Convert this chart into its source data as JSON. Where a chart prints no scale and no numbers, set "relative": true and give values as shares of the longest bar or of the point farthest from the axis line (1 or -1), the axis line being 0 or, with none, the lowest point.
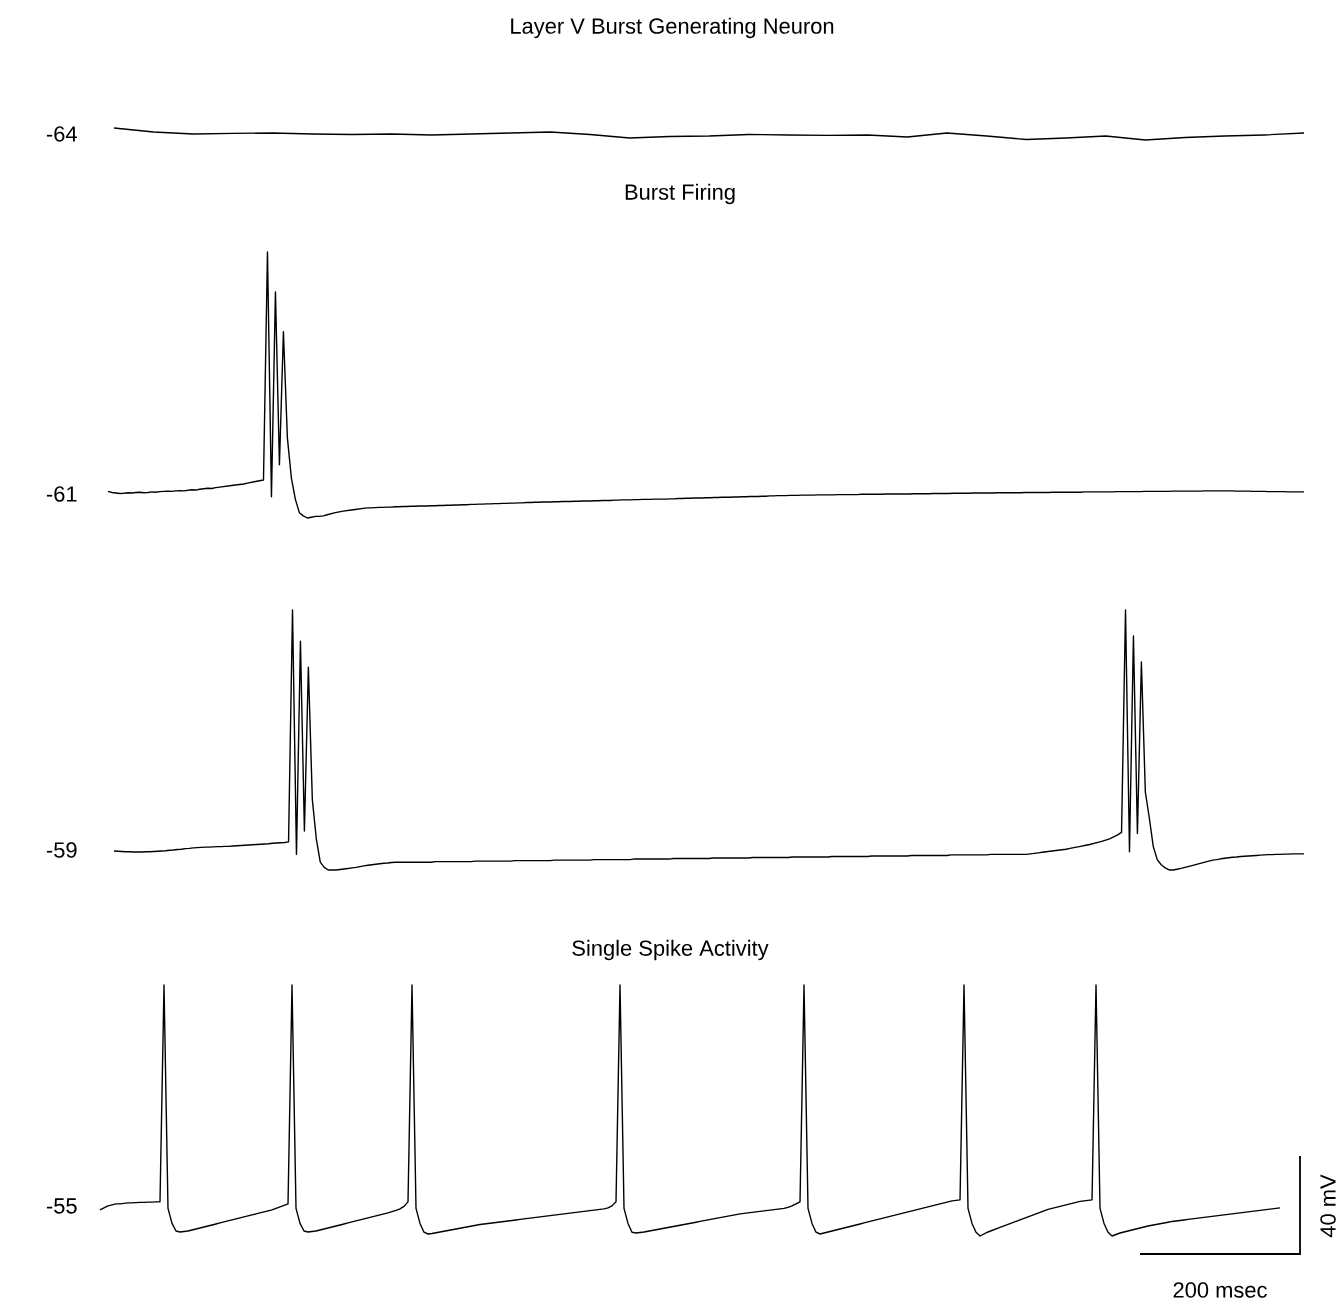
{
  "chart_data": [
    {
      "type": "line",
      "title": "Layer V Burst Generating Neuron",
      "relative": true,
      "color": "#000000",
      "annotations": [
        "-64"
      ],
      "categories": [
        null,
        null,
        null,
        null,
        null,
        null,
        null,
        null,
        null,
        null,
        null,
        null,
        null,
        null,
        null,
        null,
        null,
        null,
        null,
        null,
        null,
        null,
        null,
        null,
        null,
        null,
        null,
        null,
        null,
        null,
        null
      ],
      "values": [
        1,
        0.67,
        0.5,
        0.55,
        0.58,
        0.5,
        0.46,
        0.5,
        0.42,
        0.5,
        0.58,
        0.67,
        0.46,
        0.17,
        0.29,
        0.33,
        0.46,
        0.42,
        0.38,
        0.42,
        0.25,
        0.58,
        0.33,
        0.04,
        0.17,
        0.33,
        0,
        0.21,
        0.33,
        0.42,
        0.58
      ]
    },
    {
      "type": "line",
      "title": "Burst Firing",
      "relative": true,
      "color": "#000000",
      "annotations": [
        "-61"
      ],
      "categories": [
        null,
        null,
        null,
        null,
        null,
        null,
        null,
        null,
        null,
        null,
        null,
        null,
        null,
        null,
        null,
        null,
        null,
        null,
        null,
        null,
        null,
        null,
        null,
        null,
        null,
        null,
        null,
        null,
        null,
        null,
        null,
        null,
        null,
        null,
        null,
        null,
        null,
        null,
        null,
        null,
        null,
        null,
        null,
        null,
        null,
        null,
        null,
        null,
        null,
        null,
        null,
        null,
        null,
        null,
        null,
        null,
        null,
        null,
        null,
        null,
        null,
        null,
        null,
        null,
        null,
        null,
        null,
        null,
        null,
        null,
        null,
        null,
        null,
        null,
        null,
        null,
        null,
        null,
        null,
        null,
        null,
        null,
        null,
        null,
        null,
        null,
        null,
        null,
        null,
        null,
        null,
        null,
        null,
        null,
        null,
        null,
        null,
        null,
        null,
        null,
        null,
        null,
        null,
        null,
        null,
        null,
        null,
        null,
        null,
        null,
        null,
        null,
        null,
        null,
        null,
        null,
        null,
        null,
        null,
        null,
        null,
        null,
        null,
        null,
        null,
        null,
        null,
        null,
        null,
        null,
        null,
        null,
        null,
        null,
        null,
        null,
        null,
        null,
        null,
        null,
        null,
        null,
        null,
        null,
        null,
        null,
        null,
        null,
        null,
        null,
        null,
        null,
        null,
        null,
        null,
        null,
        null,
        null,
        null,
        null,
        null,
        null,
        null,
        null,
        null,
        null,
        null,
        null,
        null,
        null,
        null,
        null,
        null,
        null,
        null,
        null,
        null,
        null,
        null,
        null,
        null,
        null,
        null,
        null,
        null,
        null,
        null,
        null,
        null,
        null,
        null,
        null,
        null,
        null,
        null,
        null,
        null,
        null,
        null,
        null,
        null,
        null,
        null,
        null,
        null,
        null,
        null,
        null,
        null,
        null,
        null,
        null,
        null,
        null,
        null,
        null,
        null,
        null,
        null,
        null,
        null,
        null,
        null,
        null,
        null,
        null,
        null,
        null,
        null,
        null,
        null,
        null,
        null,
        null,
        null,
        null,
        null,
        null,
        null,
        null,
        null,
        null,
        null,
        null,
        null,
        null,
        null,
        null,
        null,
        null,
        null,
        null,
        null,
        null,
        null,
        null,
        null,
        null,
        null,
        null,
        null,
        null,
        null,
        null,
        null,
        null,
        null,
        null,
        null,
        null,
        null,
        null,
        null,
        null,
        null,
        null,
        null,
        null,
        null,
        null,
        null,
        null,
        null,
        null,
        null,
        null,
        null,
        null,
        null,
        null,
        null,
        null,
        null,
        null,
        null,
        null,
        null,
        null,
        null,
        null,
        null
      ],
      "values": [
        0.1,
        0.096,
        0.094,
        0.092,
        0.093,
        0.095,
        0.094,
        0.096,
        0.097,
        0.095,
        0.096,
        0.098,
        0.097,
        0.099,
        0.1,
        0.101,
        0.1,
        0.102,
        0.103,
        0.102,
        0.104,
        0.106,
        0.105,
        0.108,
        0.11,
        0.112,
        0.111,
        0.114,
        0.116,
        0.118,
        0.12,
        0.122,
        0.124,
        0.126,
        0.128,
        0.131,
        0.134,
        0.137,
        0.14,
        0.143,
        1,
        0.08,
        0.85,
        0.2,
        0.7,
        0.3,
        0.15,
        0.07,
        0.02,
        0.008,
        0,
        0.003,
        0.006,
        0.006,
        0.008,
        0.012,
        0.016,
        0.02,
        0.023,
        0.026,
        0.028,
        0.03,
        0.032,
        0.034,
        0.036,
        0.038,
        0.038,
        0.039,
        0.04,
        0.04,
        0.041,
        0.041,
        0.042,
        0.042,
        0.043,
        0.043,
        0.044,
        0.044,
        0.045,
        0.045,
        0.045,
        0.046,
        0.046,
        0.047,
        0.047,
        0.048,
        0.048,
        0.049,
        0.049,
        0.05,
        0.05,
        0.051,
        0.051,
        0.052,
        0.052,
        0.053,
        0.053,
        0.054,
        0.054,
        0.055,
        0.055,
        0.056,
        0.056,
        0.057,
        0.057,
        0.058,
        0.058,
        0.059,
        0.059,
        0.06,
        0.06,
        0.06,
        0.061,
        0.061,
        0.062,
        0.062,
        0.062,
        0.063,
        0.063,
        0.064,
        0.064,
        0.064,
        0.065,
        0.065,
        0.066,
        0.066,
        0.066,
        0.067,
        0.067,
        0.068,
        0.068,
        0.068,
        0.069,
        0.069,
        0.07,
        0.07,
        0.07,
        0.071,
        0.071,
        0.071,
        0.071,
        0.072,
        0.072,
        0.073,
        0.073,
        0.074,
        0.074,
        0.075,
        0.075,
        0.075,
        0.076,
        0.076,
        0.077,
        0.077,
        0.078,
        0.078,
        0.078,
        0.079,
        0.079,
        0.08,
        0.08,
        0.081,
        0.081,
        0.081,
        0.082,
        0.082,
        0.083,
        0.083,
        0.084,
        0.084,
        0.084,
        0.085,
        0.085,
        0.085,
        0.086,
        0.086,
        0.086,
        0.086,
        0.087,
        0.087,
        0.087,
        0.087,
        0.087,
        0.088,
        0.088,
        0.088,
        0.088,
        0.088,
        0.088,
        0.089,
        0.089,
        0.089,
        0.089,
        0.089,
        0.089,
        0.09,
        0.09,
        0.09,
        0.09,
        0.09,
        0.09,
        0.09,
        0.091,
        0.091,
        0.091,
        0.091,
        0.091,
        0.092,
        0.092,
        0.092,
        0.092,
        0.092,
        0.093,
        0.093,
        0.093,
        0.093,
        0.093,
        0.094,
        0.094,
        0.094,
        0.094,
        0.094,
        0.094,
        0.095,
        0.095,
        0.095,
        0.095,
        0.095,
        0.095,
        0.095,
        0.096,
        0.096,
        0.096,
        0.096,
        0.096,
        0.096,
        0.096,
        0.097,
        0.097,
        0.097,
        0.097,
        0.097,
        0.097,
        0.097,
        0.097,
        0.098,
        0.098,
        0.098,
        0.098,
        0.098,
        0.098,
        0.098,
        0.098,
        0.099,
        0.099,
        0.099,
        0.099,
        0.099,
        0.099,
        0.099,
        0.1,
        0.1,
        0.1,
        0.1,
        0.1,
        0.1,
        0.1,
        0.101,
        0.101,
        0.101,
        0.101,
        0.101,
        0.101,
        0.101,
        0.101,
        0.102,
        0.102,
        0.102,
        0.102,
        0.102,
        0.102,
        0.102,
        0.102,
        0.101,
        0.101,
        0.101,
        0.101,
        0.1,
        0.1,
        0.1,
        0.1,
        0.099,
        0.099,
        0.099,
        0.099,
        0.099,
        0.098,
        0.098,
        0.098,
        0.098,
        0.098
      ]
    },
    {
      "type": "line",
      "relative": true,
      "color": "#000000",
      "annotations": [
        "-59"
      ],
      "categories": [
        null,
        null,
        null,
        null,
        null,
        null,
        null,
        null,
        null,
        null,
        null,
        null,
        null,
        null,
        null,
        null,
        null,
        null,
        null,
        null,
        null,
        null,
        null,
        null,
        null,
        null,
        null,
        null,
        null,
        null,
        null,
        null,
        null,
        null,
        null,
        null,
        null,
        null,
        null,
        null,
        null,
        null,
        null,
        null,
        null,
        null,
        null,
        null,
        null,
        null,
        null,
        null,
        null,
        null,
        null,
        null,
        null,
        null,
        null,
        null,
        null,
        null,
        null,
        null,
        null,
        null,
        null,
        null,
        null,
        null,
        null,
        null,
        null,
        null,
        null,
        null,
        null,
        null,
        null,
        null,
        null,
        null,
        null,
        null,
        null,
        null,
        null,
        null,
        null,
        null,
        null,
        null,
        null,
        null,
        null,
        null,
        null,
        null,
        null,
        null,
        null,
        null,
        null,
        null,
        null,
        null,
        null,
        null,
        null,
        null,
        null,
        null,
        null,
        null,
        null,
        null,
        null,
        null,
        null,
        null,
        null,
        null,
        null,
        null,
        null,
        null,
        null,
        null,
        null,
        null,
        null,
        null,
        null,
        null,
        null,
        null,
        null,
        null,
        null,
        null,
        null,
        null,
        null,
        null,
        null,
        null,
        null,
        null,
        null,
        null,
        null,
        null,
        null,
        null,
        null,
        null,
        null,
        null,
        null,
        null,
        null,
        null,
        null,
        null,
        null,
        null,
        null,
        null,
        null,
        null,
        null,
        null,
        null,
        null,
        null,
        null,
        null,
        null,
        null,
        null,
        null,
        null,
        null,
        null,
        null,
        null,
        null,
        null,
        null,
        null,
        null,
        null,
        null,
        null,
        null,
        null,
        null,
        null,
        null,
        null,
        null,
        null,
        null,
        null,
        null,
        null,
        null,
        null,
        null,
        null,
        null,
        null,
        null,
        null,
        null,
        null,
        null,
        null,
        null,
        null,
        null,
        null,
        null,
        null,
        null,
        null,
        null,
        null,
        null,
        null,
        null,
        null,
        null,
        null,
        null,
        null,
        null,
        null,
        null,
        null,
        null,
        null,
        null,
        null,
        null,
        null,
        null,
        null,
        null,
        null,
        null,
        null,
        null,
        null,
        null,
        null,
        null,
        null,
        null,
        null,
        null,
        null,
        null,
        null,
        null,
        null,
        null,
        null,
        null,
        null,
        null,
        null,
        null,
        null,
        null,
        null,
        null,
        null,
        null,
        null,
        null,
        null,
        null,
        null,
        null,
        null,
        null,
        null,
        null,
        null,
        null,
        null,
        null,
        null,
        null,
        null,
        null,
        null,
        null,
        null,
        null
      ],
      "values": [
        0.073,
        0.072,
        0.071,
        0.07,
        0.07,
        0.069,
        0.069,
        0.069,
        0.07,
        0.07,
        0.071,
        0.072,
        0.073,
        0.074,
        0.076,
        0.077,
        0.079,
        0.08,
        0.082,
        0.083,
        0.085,
        0.086,
        0.087,
        0.088,
        0.088,
        0.089,
        0.09,
        0.09,
        0.091,
        0.091,
        0.092,
        0.093,
        0.094,
        0.095,
        0.096,
        0.097,
        0.098,
        0.099,
        0.1,
        0.101,
        0.103,
        0.104,
        0.105,
        0.106,
        0.108,
        1,
        0.06,
        0.88,
        0.15,
        0.78,
        0.27,
        0.12,
        0.03,
        0.01,
        0,
        0,
        0,
        0.002,
        0.004,
        0.006,
        0.008,
        0.01,
        0.013,
        0.016,
        0.018,
        0.02,
        0.022,
        0.024,
        0.026,
        0.027,
        0.029,
        0.03,
        0.03,
        0.03,
        0.03,
        0.03,
        0.03,
        0.03,
        0.03,
        0.03,
        0.03,
        0.032,
        0.032,
        0.032,
        0.032,
        0.032,
        0.032,
        0.032,
        0.032,
        0.032,
        0.032,
        0.034,
        0.034,
        0.034,
        0.034,
        0.034,
        0.034,
        0.034,
        0.034,
        0.034,
        0.034,
        0.036,
        0.036,
        0.036,
        0.036,
        0.036,
        0.036,
        0.036,
        0.036,
        0.036,
        0.036,
        0.038,
        0.038,
        0.038,
        0.038,
        0.038,
        0.038,
        0.038,
        0.038,
        0.038,
        0.038,
        0.04,
        0.04,
        0.04,
        0.04,
        0.04,
        0.04,
        0.04,
        0.04,
        0.04,
        0.04,
        0.042,
        0.042,
        0.042,
        0.042,
        0.042,
        0.042,
        0.042,
        0.042,
        0.042,
        0.042,
        0.044,
        0.044,
        0.044,
        0.044,
        0.044,
        0.044,
        0.044,
        0.044,
        0.044,
        0.044,
        0.046,
        0.046,
        0.046,
        0.046,
        0.046,
        0.046,
        0.046,
        0.046,
        0.046,
        0.046,
        0.048,
        0.048,
        0.048,
        0.048,
        0.048,
        0.048,
        0.048,
        0.048,
        0.048,
        0.048,
        0.05,
        0.05,
        0.05,
        0.05,
        0.05,
        0.05,
        0.05,
        0.05,
        0.05,
        0.05,
        0.052,
        0.052,
        0.052,
        0.052,
        0.052,
        0.052,
        0.052,
        0.052,
        0.052,
        0.052,
        0.054,
        0.054,
        0.054,
        0.054,
        0.054,
        0.054,
        0.054,
        0.054,
        0.054,
        0.054,
        0.056,
        0.056,
        0.056,
        0.056,
        0.056,
        0.056,
        0.056,
        0.056,
        0.056,
        0.056,
        0.058,
        0.058,
        0.058,
        0.058,
        0.058,
        0.058,
        0.058,
        0.058,
        0.058,
        0.058,
        0.06,
        0.06,
        0.06,
        0.06,
        0.06,
        0.06,
        0.06,
        0.06,
        0.06,
        0.06,
        0.062,
        0.064,
        0.066,
        0.068,
        0.07,
        0.072,
        0.074,
        0.076,
        0.078,
        0.08,
        0.083,
        0.086,
        0.089,
        0.092,
        0.095,
        0.098,
        0.102,
        0.106,
        0.11,
        0.115,
        0.12,
        0.127,
        0.135,
        0.145,
        1,
        0.07,
        0.9,
        0.14,
        0.8,
        0.3,
        0.2,
        0.09,
        0.04,
        0.02,
        0.008,
        0,
        0,
        0.003,
        0.006,
        0.01,
        0.014,
        0.018,
        0.022,
        0.026,
        0.03,
        0.034,
        0.038,
        0.04,
        0.043,
        0.045,
        0.047,
        0.049,
        0.05,
        0.052,
        0.053,
        0.054,
        0.055,
        0.056,
        0.057,
        0.058,
        0.059,
        0.059,
        0.06,
        0.06,
        0.061,
        0.061,
        0.062,
        0.062,
        0.062,
        0.062
      ]
    },
    {
      "type": "line",
      "title": "Single Spike Activity",
      "relative": true,
      "color": "#000000",
      "annotations": [
        "-55",
        "200 msec",
        "40 mV"
      ],
      "categories": [
        null,
        null,
        null,
        null,
        null,
        null,
        null,
        null,
        null,
        null,
        null,
        null,
        null,
        null,
        null,
        null,
        null,
        null,
        null,
        null,
        null,
        null,
        null,
        null,
        null,
        null,
        null,
        null,
        null,
        null,
        null,
        null,
        null,
        null,
        null,
        null,
        null,
        null,
        null,
        null,
        null,
        null,
        null,
        null,
        null,
        null,
        null,
        null,
        null,
        null,
        null,
        null,
        null,
        null,
        null,
        null,
        null,
        null,
        null,
        null,
        null,
        null,
        null,
        null,
        null,
        null,
        null,
        null,
        null,
        null,
        null,
        null,
        null,
        null,
        null,
        null,
        null,
        null,
        null,
        null,
        null,
        null,
        null,
        null,
        null,
        null,
        null,
        null,
        null,
        null,
        null,
        null,
        null,
        null,
        null,
        null,
        null,
        null,
        null,
        null,
        null,
        null,
        null,
        null,
        null,
        null,
        null,
        null,
        null,
        null,
        null,
        null,
        null,
        null,
        null,
        null,
        null,
        null,
        null,
        null,
        null,
        null,
        null,
        null,
        null,
        null,
        null,
        null,
        null,
        null,
        null,
        null,
        null,
        null,
        null,
        null,
        null,
        null,
        null,
        null,
        null,
        null,
        null,
        null,
        null,
        null,
        null,
        null,
        null,
        null,
        null,
        null,
        null,
        null,
        null,
        null,
        null,
        null,
        null,
        null,
        null,
        null,
        null,
        null,
        null,
        null,
        null,
        null,
        null,
        null,
        null,
        null,
        null,
        null,
        null,
        null,
        null,
        null,
        null,
        null,
        null,
        null,
        null,
        null,
        null,
        null,
        null,
        null,
        null,
        null,
        null,
        null,
        null,
        null,
        null,
        null,
        null,
        null,
        null,
        null,
        null,
        null,
        null,
        null,
        null,
        null,
        null,
        null,
        null,
        null,
        null,
        null,
        null,
        null,
        null,
        null,
        null,
        null,
        null,
        null,
        null,
        null,
        null,
        null,
        null,
        null,
        null,
        null,
        null,
        null,
        null,
        null,
        null,
        null,
        null,
        null,
        null,
        null,
        null,
        null,
        null,
        null,
        null,
        null,
        null,
        null,
        null,
        null,
        null,
        null,
        null,
        null,
        null,
        null,
        null,
        null,
        null,
        null,
        null,
        null,
        null,
        null,
        null,
        null,
        null,
        null,
        null,
        null,
        null,
        null,
        null,
        null,
        null,
        null,
        null,
        null,
        null,
        null,
        null,
        null,
        null,
        null,
        null,
        null,
        null,
        null,
        null,
        null,
        null,
        null,
        null,
        null,
        null,
        null,
        null,
        null
      ],
      "values": [
        0.104,
        0.112,
        0.12,
        0.124,
        0.128,
        0.128,
        0.13,
        0.132,
        0.132,
        0.133,
        0.134,
        0.134,
        0.135,
        0.135,
        0.136,
        0.136,
        1,
        0.11,
        0.05,
        0.02,
        0.016,
        0.018,
        0.02,
        0.024,
        0.028,
        0.032,
        0.036,
        0.04,
        0.044,
        0.048,
        0.052,
        0.056,
        0.06,
        0.064,
        0.068,
        0.072,
        0.076,
        0.08,
        0.084,
        0.088,
        0.092,
        0.096,
        0.1,
        0.104,
        0.11,
        0.116,
        0.122,
        0.128,
        1,
        0.11,
        0.05,
        0.02,
        0.016,
        0.018,
        0.02,
        0.024,
        0.028,
        0.032,
        0.036,
        0.04,
        0.044,
        0.048,
        0.052,
        0.056,
        0.06,
        0.064,
        0.068,
        0.072,
        0.076,
        0.08,
        0.084,
        0.088,
        0.092,
        0.097,
        0.102,
        0.108,
        0.118,
        0.136,
        1,
        0.11,
        0.05,
        0.015,
        0.008,
        0.01,
        0.013,
        0.016,
        0.019,
        0.022,
        0.025,
        0.028,
        0.031,
        0.034,
        0.037,
        0.04,
        0.043,
        0.046,
        0.048,
        0.05,
        0.052,
        0.054,
        0.056,
        0.058,
        0.06,
        0.062,
        0.064,
        0.066,
        0.068,
        0.07,
        0.072,
        0.074,
        0.076,
        0.078,
        0.08,
        0.082,
        0.084,
        0.086,
        0.088,
        0.09,
        0.092,
        0.094,
        0.096,
        0.098,
        0.1,
        0.102,
        0.104,
        0.106,
        0.108,
        0.112,
        0.12,
        0.136,
        1,
        0.11,
        0.05,
        0.015,
        0.012,
        0.014,
        0.016,
        0.019,
        0.022,
        0.025,
        0.028,
        0.031,
        0.034,
        0.037,
        0.04,
        0.043,
        0.046,
        0.049,
        0.052,
        0.055,
        0.058,
        0.061,
        0.064,
        0.067,
        0.07,
        0.073,
        0.076,
        0.079,
        0.082,
        0.085,
        0.088,
        0.09,
        0.092,
        0.094,
        0.096,
        0.098,
        0.1,
        0.102,
        0.104,
        0.106,
        0.108,
        0.11,
        0.114,
        0.12,
        0.128,
        0.136,
        1,
        0.11,
        0.05,
        0.015,
        0.008,
        0.012,
        0.016,
        0.02,
        0.024,
        0.028,
        0.032,
        0.036,
        0.04,
        0.044,
        0.048,
        0.052,
        0.056,
        0.06,
        0.064,
        0.068,
        0.072,
        0.076,
        0.08,
        0.084,
        0.088,
        0.092,
        0.096,
        0.1,
        0.104,
        0.108,
        0.112,
        0.116,
        0.12,
        0.124,
        0.128,
        0.132,
        0.136,
        0.14,
        0.142,
        0.144,
        1,
        0.11,
        0.05,
        0.015,
        0,
        0.008,
        0.016,
        0.022,
        0.028,
        0.034,
        0.04,
        0.046,
        0.052,
        0.058,
        0.064,
        0.07,
        0.076,
        0.082,
        0.088,
        0.094,
        0.1,
        0.106,
        0.11,
        0.114,
        0.118,
        0.122,
        0.126,
        0.13,
        0.134,
        0.138,
        0.14,
        0.142,
        0.144,
        1,
        0.11,
        0.05,
        0.015,
        0,
        0.006,
        0.012,
        0.016,
        0.02,
        0.024,
        0.028,
        0.032,
        0.036,
        0.04,
        0.043,
        0.046,
        0.049,
        0.052,
        0.055,
        0.058,
        0.06,
        0.062,
        0.064,
        0.066,
        0.068,
        0.07,
        0.072,
        0.074,
        0.076,
        0.078,
        0.08,
        0.082,
        0.084,
        0.086,
        0.088,
        0.09,
        0.092,
        0.094,
        0.096,
        0.098,
        0.1,
        0.102,
        0.104,
        0.106,
        0.108,
        0.11,
        0.112
      ]
    }
  ]
}
